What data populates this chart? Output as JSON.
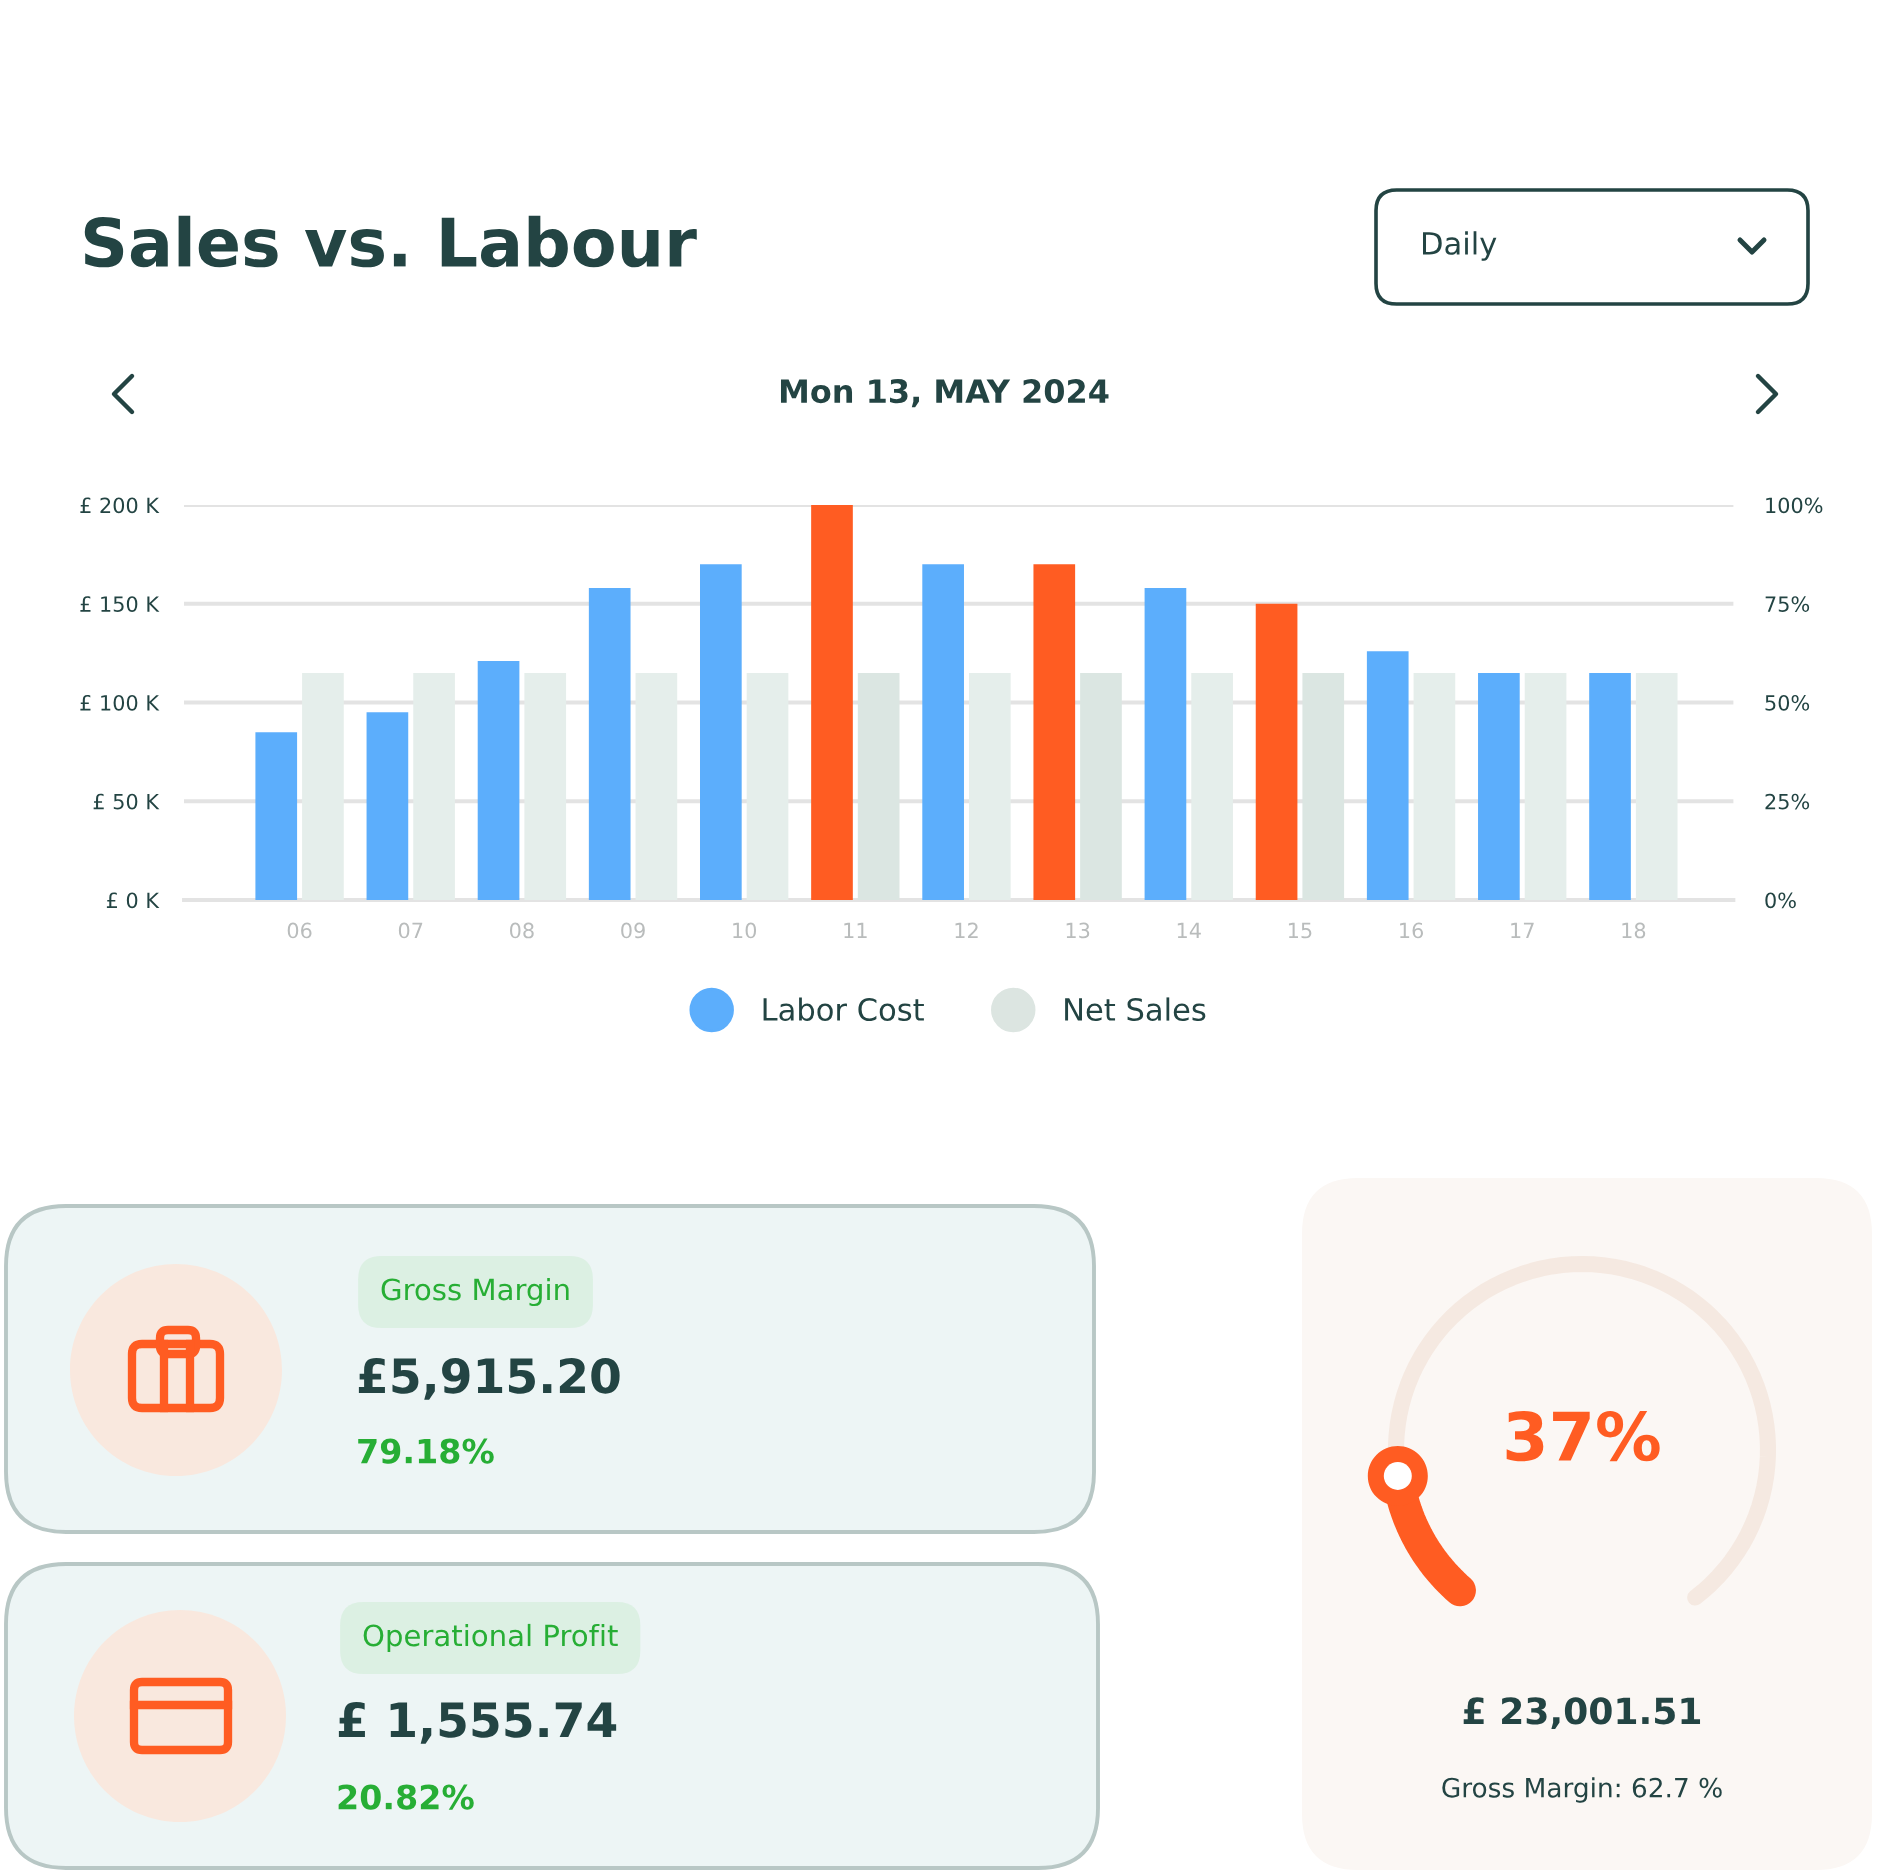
{
  "chart_data": [
    {
      "type": "bar",
      "title": "Sales vs. Labour",
      "subtitle": "Mon 13, MAY 2024",
      "categories": [
        "06",
        "07",
        "08",
        "09",
        "10",
        "11",
        "12",
        "13",
        "14",
        "15",
        "16",
        "17",
        "18"
      ],
      "series": [
        {
          "name": "Labor Cost",
          "color": "#5caefc",
          "colors": [
            "#5caefc",
            "#5caefc",
            "#5caefc",
            "#5caefc",
            "#5caefc",
            "#ff5c22",
            "#5caefc",
            "#ff5c22",
            "#5caefc",
            "#ff5c22",
            "#5caefc",
            "#5caefc",
            "#5caefc"
          ],
          "values": [
            85,
            95,
            121,
            158,
            170,
            200,
            170,
            170,
            158,
            150,
            126,
            115,
            115
          ]
        },
        {
          "name": "Net Sales",
          "color": "#dce5e1",
          "colors": [
            "#e5eeeb",
            "#e5eeeb",
            "#e5eeeb",
            "#e5eeeb",
            "#e5eeeb",
            "#dbe6e2",
            "#e5eeeb",
            "#dbe6e2",
            "#e5eeeb",
            "#dbe6e2",
            "#e5eeeb",
            "#e5eeeb",
            "#e5eeeb"
          ],
          "values": [
            115,
            115,
            115,
            115,
            115,
            115,
            115,
            115,
            115,
            115,
            115,
            115,
            115
          ]
        }
      ],
      "ylim": [
        0,
        200
      ],
      "yticks": [
        {
          "value": 0,
          "label": "£ 0 K"
        },
        {
          "value": 50,
          "label": "£ 50 K"
        },
        {
          "value": 100,
          "label": "£ 100 K"
        },
        {
          "value": 150,
          "label": "£ 150 K"
        },
        {
          "value": 200,
          "label": "£ 200 K"
        }
      ],
      "y2lim": [
        0,
        100
      ],
      "y2ticks": [
        {
          "value": 0,
          "label": "0%"
        },
        {
          "value": 25,
          "label": "25%"
        },
        {
          "value": 50,
          "label": "50%"
        },
        {
          "value": 75,
          "label": "75%"
        },
        {
          "value": 100,
          "label": "100%"
        }
      ],
      "grid": "y",
      "legend": "bottom",
      "annotations": [
        "Daily"
      ]
    },
    {
      "type": "other",
      "title": "Gross Margin",
      "annotations": [
        "£5,915.20",
        "79.18%"
      ]
    },
    {
      "type": "other",
      "title": "Operational Profit",
      "annotations": [
        "£ 1,555.74",
        "20.82%"
      ]
    },
    {
      "type": "other",
      "annotations": [
        "37%",
        "£ 23,001.51",
        "Gross Margin: 62.7 %"
      ]
    }
  ]
}
